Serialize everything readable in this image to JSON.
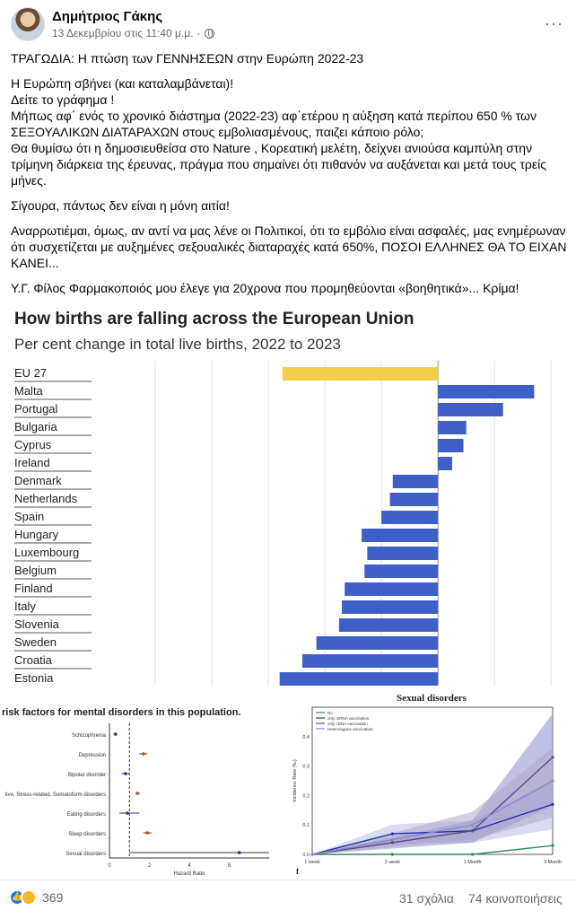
{
  "post": {
    "author": "Δημήτριος Γάκης",
    "date": "13 Δεκεμβρίου στις 11:40 μ.μ.",
    "separator": "·",
    "more_label": "···",
    "text": {
      "p1": "ΤΡΑΓΩΔΙΑ: Η πτώση των ΓΕΝΝΗΣΕΩΝ στην Ευρώπη 2022-23",
      "p2a": "Η Ευρώπη σβήνει (και καταλαμβάνεται)!",
      "p2b": "Δείτε το γράφημα !",
      "p2c": "Μήπως αφ΄ ενός το χρονικό διάστημα (2022-23) αφ΄ετέρου η αύξηση κατά περίπου 650 % των ΣΕΞΟΥΑΛΙΚΩΝ ΔΙΑΤΑΡΑΧΩΝ στους εμβολιασμένους, παιζει κάποιο ρόλο;",
      "p2d": "Θα θυμίσω ότι η δημοσιευθείσα στο Nature , Κορεατική μελέτη, δείχνει ανιούσα καμπύλη στην τρίμηνη διάρκεια της έρευνας, πράγμα που σημαίνει ότι πιθανόν να αυξάνεται και μετά τους τρείς μήνες.",
      "p3": "Σίγουρα, πάντως δεν είναι η μόνη αιτία!",
      "p4": "Αναρρωτιέμαι, όμως, αν αντί να μας λένε οι Πολιτικοί, ότι το εμβόλιο είναι ασφαλές, μας ενημέρωναν ότι συσχετίζεται με αυξημένες σεξουαλικές διαταραχές κατά 650%, ΠΟΣΟΙ ΕΛΛΗΝΕΣ ΘΑ ΤΟ ΕΙΧΑΝ ΚΑΝΕΙ...",
      "p5": "Υ.Γ. Φίλος Φαρμακοποιός μου έλεγε για 20χρονα που προμηθεύονται «βοηθητικά»... Κρίμα!"
    }
  },
  "chart_data": [
    {
      "type": "bar",
      "title": "How births are falling across the European Union",
      "subtitle": "Per cent change in total live births, 2022 to 2023",
      "categories": [
        "EU 27",
        "Malta",
        "Portugal",
        "Bulgaria",
        "Cyprus",
        "Ireland",
        "Denmark",
        "Netherlands",
        "Spain",
        "Hungary",
        "Luxembourg",
        "Belgium",
        "Finland",
        "Italy",
        "Slovenia",
        "Sweden",
        "Croatia",
        "Estonia"
      ],
      "values": [
        -5.5,
        3.4,
        2.3,
        1.0,
        0.9,
        0.5,
        -1.6,
        -1.7,
        -2.0,
        -2.7,
        -2.5,
        -2.6,
        -3.3,
        -3.4,
        -3.5,
        -4.3,
        -4.8,
        -5.6
      ],
      "highlight_color": "#f2cf45",
      "bar_color": "#3f5fc8",
      "xlim": [
        -12,
        4.5
      ],
      "grid": true
    },
    {
      "type": "scatter",
      "title": "risk factors for mental disorders in this population.",
      "categories": [
        "Schizophrenia",
        "Depression",
        "Bipolar disorder",
        "tive, Stress-related, Somatoform disorders",
        "Eating disorders",
        "Sleep disorders",
        "Sexual disorders"
      ],
      "values": [
        0.3,
        1.7,
        0.8,
        1.4,
        0.9,
        1.9,
        6.5
      ],
      "ci_low": [
        0.2,
        1.5,
        0.6,
        1.3,
        0.5,
        1.7,
        1.0
      ],
      "ci_high": [
        0.4,
        1.9,
        1.0,
        1.5,
        1.5,
        2.1,
        8.0
      ],
      "xlabel": "Hazard Ratio",
      "xticks": [
        "0",
        "2",
        "4",
        "6"
      ],
      "xlim": [
        0,
        8
      ]
    },
    {
      "type": "line",
      "title": "Sexual disorders",
      "ylabel": "Incidence Rate (‰)",
      "x": [
        "1 week",
        "2 week",
        "1 Month",
        "3 Month"
      ],
      "yticks": [
        "0.0",
        "0.1",
        "0.2",
        "0.3",
        "0.4"
      ],
      "ylim": [
        0,
        0.5
      ],
      "panel_label": "f",
      "series": [
        {
          "name": "No",
          "values": [
            0.0,
            0.0,
            0.0,
            0.03
          ],
          "color": "#2e8b57"
        },
        {
          "name": "only mRNA vaccination",
          "values": [
            0.0,
            0.07,
            0.08,
            0.17
          ],
          "color": "#2233aa"
        },
        {
          "name": "only cDNA vaccination",
          "values": [
            0.0,
            0.04,
            0.08,
            0.33
          ],
          "color": "#5a4a8a"
        },
        {
          "name": "Heterologous vaccination",
          "values": [
            0.0,
            0.05,
            0.1,
            0.25
          ],
          "color": "#8888cc"
        }
      ]
    }
  ],
  "footer": {
    "reaction_count": "369",
    "comments": "31 σχόλια",
    "shares": "74 κοινοποιήσεις"
  }
}
